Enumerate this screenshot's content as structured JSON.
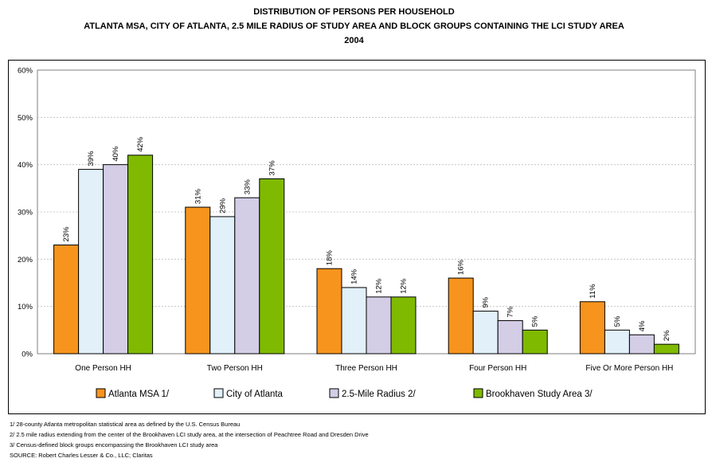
{
  "header": {
    "title_line1": "DISTRIBUTION OF PERSONS PER HOUSEHOLD",
    "title_line2": "ATLANTA MSA, CITY OF ATLANTA, 2.5 MILE RADIUS OF STUDY AREA AND BLOCK GROUPS CONTAINING THE LCI STUDY AREA",
    "title_line3": "2004"
  },
  "chart_data": {
    "type": "bar",
    "categories": [
      "One Person HH",
      "Two Person HH",
      "Three Person HH",
      "Four Person HH",
      "Five Or More Person HH"
    ],
    "series": [
      {
        "name": "Atlanta MSA 1/",
        "color": "#f7941d",
        "values": [
          23,
          31,
          18,
          16,
          11
        ],
        "labels": [
          "23%",
          "31%",
          "18%",
          "16%",
          "11%"
        ]
      },
      {
        "name": "City of Atlanta",
        "color": "#e1f0f9",
        "values": [
          39,
          29,
          14,
          9,
          5
        ],
        "labels": [
          "39%",
          "29%",
          "14%",
          "9%",
          "5%"
        ]
      },
      {
        "name": "2.5-Mile Radius 2/",
        "color": "#d4cde6",
        "values": [
          40,
          33,
          12,
          7,
          4
        ],
        "labels": [
          "40%",
          "33%",
          "12%",
          "7%",
          "4%"
        ]
      },
      {
        "name": "Brookhaven Study Area 3/",
        "color": "#7fba00",
        "values": [
          42,
          37,
          12,
          5,
          2
        ],
        "labels": [
          "42%",
          "37%",
          "12%",
          "5%",
          "2%"
        ]
      }
    ],
    "ylim": [
      0,
      60
    ],
    "yticks": [
      "0%",
      "10%",
      "20%",
      "30%",
      "40%",
      "50%",
      "60%"
    ],
    "grid": true,
    "legend_placement": "bottom"
  },
  "footnotes": [
    "1/ 28-county Atlanta metropolitan statistical area as defined by the U.S. Census Bureau",
    "2/ 2.5 mile radius extending from the center of the Brookhaven LCI study area, at the intersection of Peachtree Road and Dresden Drive",
    "3/ Census-defined block groups encompassing the Brookhaven LCI study area",
    "SOURCE:  Robert Charles Lesser & Co., LLC; Claritas"
  ]
}
